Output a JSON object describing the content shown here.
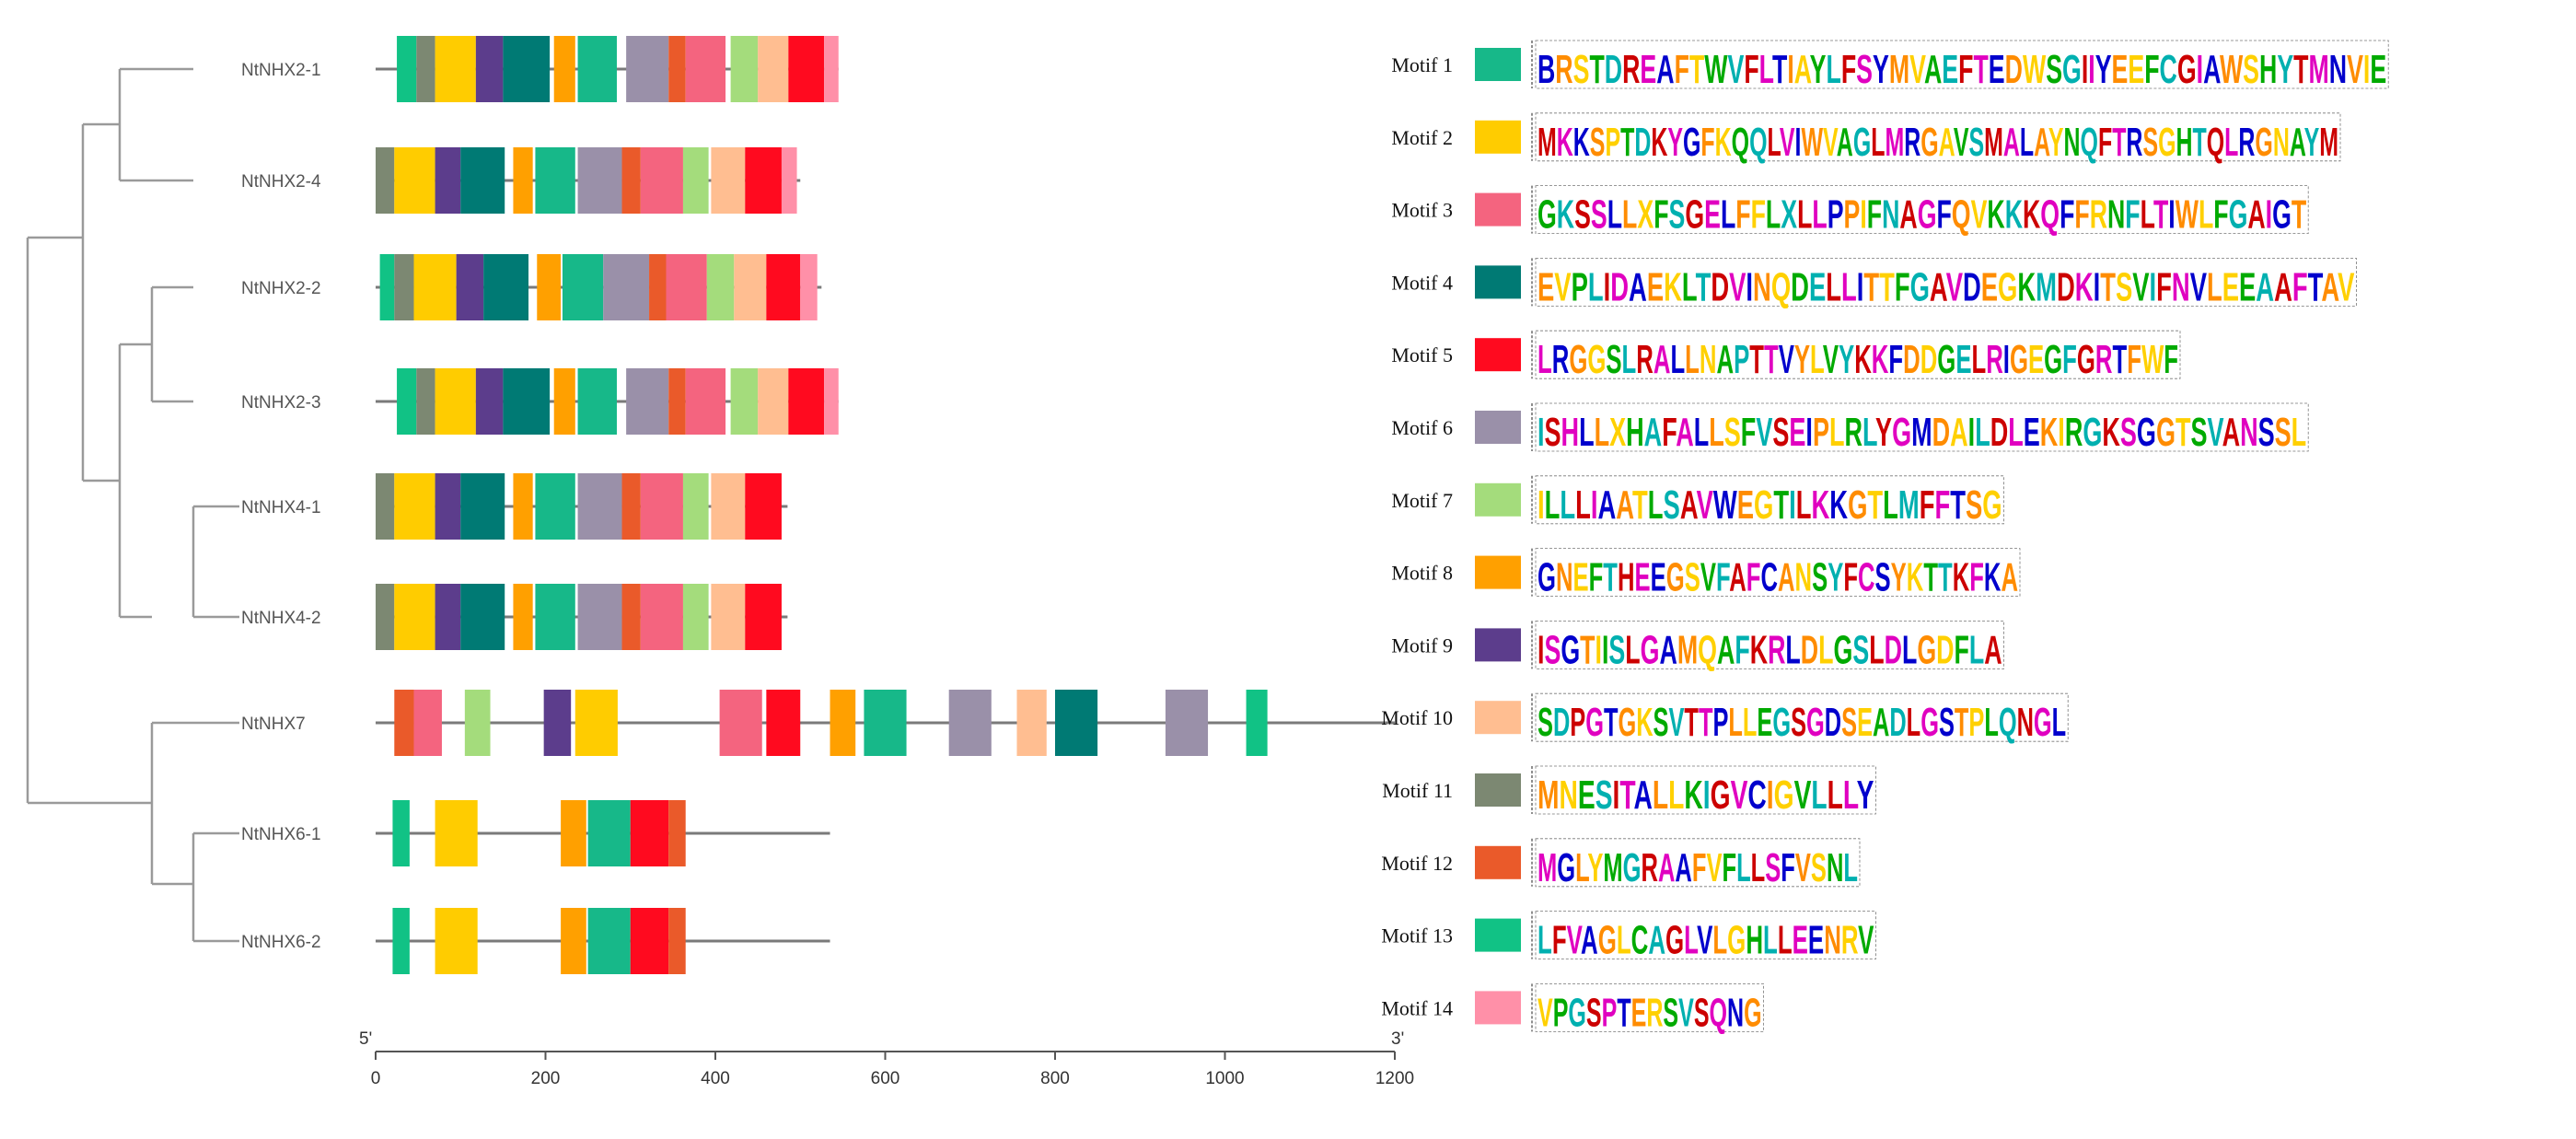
{
  "figure": {
    "type": "motif-distribution-diagram",
    "axis": {
      "start_label": "5'",
      "end_label": "3'",
      "min": 0,
      "max": 1200,
      "ticks": [
        0,
        200,
        400,
        600,
        800,
        1000,
        1200
      ],
      "tick_labels": [
        "0",
        "200",
        "400",
        "600",
        "800",
        "1000",
        "1200"
      ]
    },
    "genes": [
      {
        "name": "NtNHX2-1",
        "length": 545
      },
      {
        "name": "NtNHX2-4",
        "length": 500
      },
      {
        "name": "NtNHX2-2",
        "length": 525
      },
      {
        "name": "NtNHX2-3",
        "length": 545
      },
      {
        "name": "NtNHX4-1",
        "length": 485
      },
      {
        "name": "NtNHX4-2",
        "length": 485
      },
      {
        "name": "NtNHX7",
        "length": 1200
      },
      {
        "name": "NtNHX6-1",
        "length": 535
      },
      {
        "name": "NtNHX6-2",
        "length": 535
      }
    ],
    "motifs": [
      {
        "id": 1,
        "label": "Motif 1",
        "color": "#17b889",
        "logo": "BRSTDREAFTWVFLTIAYLFSYMVAEFTEDWSGIIYEEFCGIAWSHYTMNVIE"
      },
      {
        "id": 2,
        "label": "Motif 2",
        "color": "#ffcc00",
        "logo": "MKKSPTDKYGFKQQLVIWVAGLMRGAVSMALAYNQFTRSGHTQLRGNAYM"
      },
      {
        "id": 3,
        "label": "Motif 3",
        "color": "#f4647f",
        "logo": "GKSSLLXFSGELFFLXLLPPIFNAGFQVKKKQFFRNFLTIWLFGAIGT"
      },
      {
        "id": 4,
        "label": "Motif 4",
        "color": "#007a74",
        "logo": "EVPLIDAEKLTDVINQDELLITTFGAVDEGKMDKITSVIFNVLEEAAFTAV"
      },
      {
        "id": 5,
        "label": "Motif 5",
        "color": "#ff0a1f",
        "logo": "LRGGSLRALLNAPTTVYLVYKKFDDGELRIGEGFGRTFWF"
      },
      {
        "id": 6,
        "label": "Motif 6",
        "color": "#9a90a9",
        "logo": "ISHLLXHAFALLSFVSEIPLRLYGMDAILDLEKIRGKSGGTSVANSSL"
      },
      {
        "id": 7,
        "label": "Motif 7",
        "color": "#a4dc7c",
        "logo": "ILLLIAATLSAVWEGTILKKGTLMFFTSG"
      },
      {
        "id": 8,
        "label": "Motif 8",
        "color": "#ffa000",
        "logo": "GNEFTHEEGSVFAFCANSYFCSYKTTKFKA"
      },
      {
        "id": 9,
        "label": "Motif 9",
        "color": "#5c3d8c",
        "logo": "ISGTIISLGAMQAFKRLDLGSLDLGDFLA"
      },
      {
        "id": 10,
        "label": "Motif 10",
        "color": "#ffbe91",
        "logo": "SDPGTGKSVTTPLLEGSGDSEADLGSTPLQNGL"
      },
      {
        "id": 11,
        "label": "Motif 11",
        "color": "#7c8872",
        "logo": "MNESITALLKIGVCIGVLLLY"
      },
      {
        "id": 12,
        "label": "Motif 12",
        "color": "#ea5a2a",
        "logo": "MGLYMGRAAFVFLLSFVSNL"
      },
      {
        "id": 13,
        "label": "Motif 13",
        "color": "#11c285",
        "logo": "LFVAGLCAGLVLGHLLEENRV"
      },
      {
        "id": 14,
        "label": "Motif 14",
        "color": "#ff90a8",
        "logo": "VPGSPTERSVSQNG"
      }
    ],
    "motif_blocks": [
      [
        [
          13,
          25,
          48
        ],
        [
          11,
          48,
          70
        ],
        [
          2,
          70,
          118
        ],
        [
          9,
          118,
          150
        ],
        [
          4,
          150,
          205
        ],
        [
          8,
          210,
          235
        ],
        [
          1,
          238,
          284
        ],
        [
          6,
          295,
          345
        ],
        [
          12,
          345,
          365
        ],
        [
          3,
          365,
          412
        ],
        [
          7,
          418,
          450
        ],
        [
          10,
          450,
          486
        ],
        [
          5,
          486,
          528
        ],
        [
          14,
          528,
          545
        ]
      ],
      [
        [
          11,
          0,
          22
        ],
        [
          2,
          22,
          70
        ],
        [
          9,
          70,
          100
        ],
        [
          4,
          100,
          152
        ],
        [
          8,
          162,
          185
        ],
        [
          1,
          188,
          235
        ],
        [
          6,
          238,
          290
        ],
        [
          12,
          290,
          312
        ],
        [
          3,
          312,
          362
        ],
        [
          7,
          362,
          392
        ],
        [
          10,
          395,
          435
        ],
        [
          5,
          435,
          478
        ],
        [
          14,
          478,
          496
        ]
      ],
      [
        [
          13,
          5,
          22
        ],
        [
          11,
          22,
          45
        ],
        [
          2,
          45,
          95
        ],
        [
          9,
          95,
          127
        ],
        [
          4,
          127,
          180
        ],
        [
          8,
          190,
          218
        ],
        [
          1,
          220,
          268
        ],
        [
          6,
          268,
          322
        ],
        [
          12,
          322,
          342
        ],
        [
          3,
          342,
          390
        ],
        [
          7,
          390,
          422
        ],
        [
          10,
          422,
          460
        ],
        [
          5,
          460,
          500
        ],
        [
          14,
          500,
          520
        ]
      ],
      [
        [
          13,
          25,
          48
        ],
        [
          11,
          48,
          70
        ],
        [
          2,
          70,
          118
        ],
        [
          9,
          118,
          150
        ],
        [
          4,
          150,
          205
        ],
        [
          8,
          210,
          235
        ],
        [
          1,
          238,
          284
        ],
        [
          6,
          295,
          345
        ],
        [
          12,
          345,
          365
        ],
        [
          3,
          365,
          412
        ],
        [
          7,
          418,
          450
        ],
        [
          10,
          450,
          486
        ],
        [
          5,
          486,
          528
        ],
        [
          14,
          528,
          545
        ]
      ],
      [
        [
          11,
          0,
          22
        ],
        [
          2,
          22,
          70
        ],
        [
          9,
          70,
          100
        ],
        [
          4,
          100,
          152
        ],
        [
          8,
          162,
          185
        ],
        [
          1,
          188,
          235
        ],
        [
          6,
          238,
          290
        ],
        [
          12,
          290,
          312
        ],
        [
          3,
          312,
          362
        ],
        [
          7,
          362,
          392
        ],
        [
          10,
          395,
          435
        ],
        [
          5,
          435,
          478
        ]
      ],
      [
        [
          11,
          0,
          22
        ],
        [
          2,
          22,
          70
        ],
        [
          9,
          70,
          100
        ],
        [
          4,
          100,
          152
        ],
        [
          8,
          162,
          185
        ],
        [
          1,
          188,
          235
        ],
        [
          6,
          238,
          290
        ],
        [
          12,
          290,
          312
        ],
        [
          3,
          312,
          362
        ],
        [
          7,
          362,
          392
        ],
        [
          10,
          395,
          435
        ],
        [
          5,
          435,
          478
        ]
      ],
      [
        [
          12,
          22,
          45
        ],
        [
          3,
          45,
          78
        ],
        [
          7,
          105,
          135
        ],
        [
          9,
          198,
          230
        ],
        [
          2,
          235,
          285
        ],
        [
          3,
          405,
          455
        ],
        [
          5,
          460,
          500
        ],
        [
          8,
          535,
          565
        ],
        [
          1,
          575,
          625
        ],
        [
          6,
          675,
          725
        ],
        [
          10,
          755,
          790
        ],
        [
          4,
          800,
          850
        ],
        [
          6,
          930,
          980
        ],
        [
          13,
          1025,
          1050
        ]
      ],
      [
        [
          13,
          20,
          40
        ],
        [
          2,
          70,
          120
        ],
        [
          8,
          218,
          248
        ],
        [
          1,
          250,
          300
        ],
        [
          5,
          300,
          345
        ],
        [
          12,
          345,
          365
        ]
      ],
      [
        [
          13,
          20,
          40
        ],
        [
          2,
          70,
          120
        ],
        [
          8,
          218,
          248
        ],
        [
          1,
          250,
          300
        ],
        [
          5,
          300,
          345
        ],
        [
          12,
          345,
          365
        ]
      ]
    ]
  }
}
